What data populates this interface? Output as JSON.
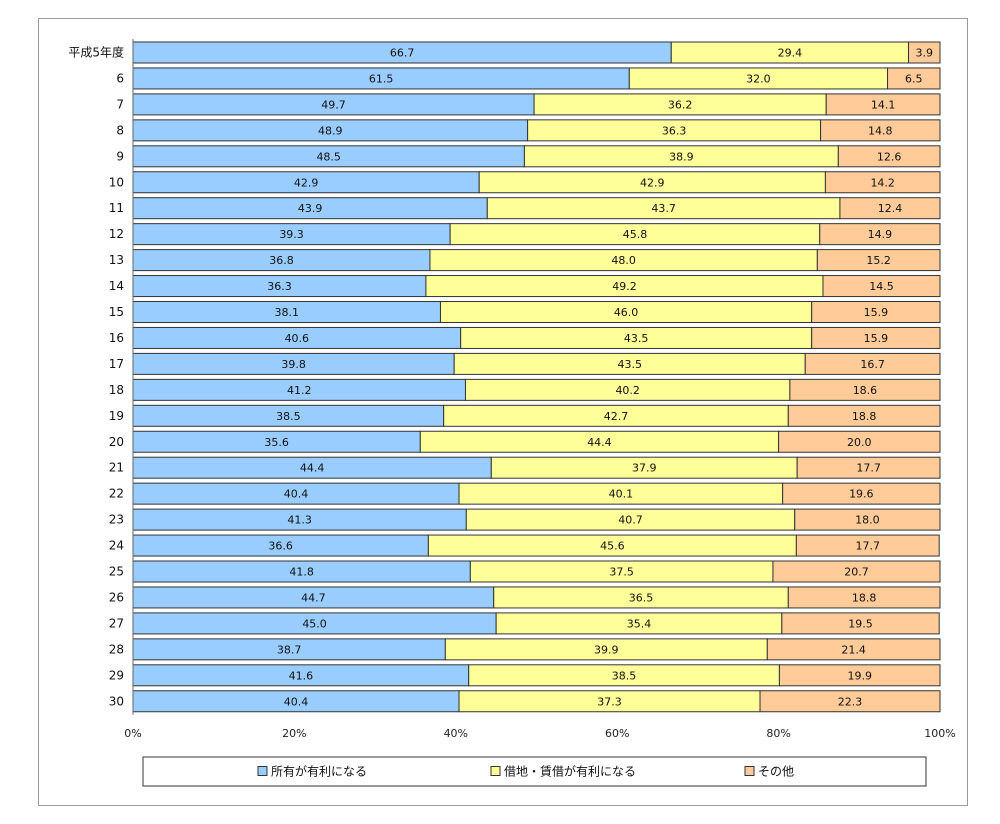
{
  "chart_data": {
    "type": "bar",
    "orientation": "horizontal",
    "stacked": true,
    "categories": [
      "平成5年度",
      "6",
      "7",
      "8",
      "9",
      "10",
      "11",
      "12",
      "13",
      "14",
      "15",
      "16",
      "17",
      "18",
      "19",
      "20",
      "21",
      "22",
      "23",
      "24",
      "25",
      "26",
      "27",
      "28",
      "29",
      "30"
    ],
    "series": [
      {
        "name": "所有が有利になる",
        "color": "#99ccff",
        "values": [
          66.7,
          61.5,
          49.7,
          48.9,
          48.5,
          42.9,
          43.9,
          39.3,
          36.8,
          36.3,
          38.1,
          40.6,
          39.8,
          41.2,
          38.5,
          35.6,
          44.4,
          40.4,
          41.3,
          36.6,
          41.8,
          44.7,
          45.0,
          38.7,
          41.6,
          40.4
        ]
      },
      {
        "name": "借地・賃借が有利になる",
        "color": "#ffff99",
        "values": [
          29.4,
          32.0,
          36.2,
          36.3,
          38.9,
          42.9,
          43.7,
          45.8,
          48.0,
          49.2,
          46.0,
          43.5,
          43.5,
          40.2,
          42.7,
          44.4,
          37.9,
          40.1,
          40.7,
          45.6,
          37.5,
          36.5,
          35.4,
          39.9,
          38.5,
          37.3
        ]
      },
      {
        "name": "その他",
        "color": "#ffcc99",
        "values": [
          3.9,
          6.5,
          14.1,
          14.8,
          12.6,
          14.2,
          12.4,
          14.9,
          15.2,
          14.5,
          15.9,
          15.9,
          16.7,
          18.6,
          18.8,
          20.0,
          17.7,
          19.6,
          18.0,
          17.7,
          20.7,
          18.8,
          19.5,
          21.4,
          19.9,
          22.3
        ]
      }
    ],
    "xlim": [
      0,
      100
    ],
    "x_ticks": [
      "0%",
      "20%",
      "40%",
      "60%",
      "80%",
      "100%"
    ],
    "grid": false,
    "legend_position": "bottom"
  }
}
